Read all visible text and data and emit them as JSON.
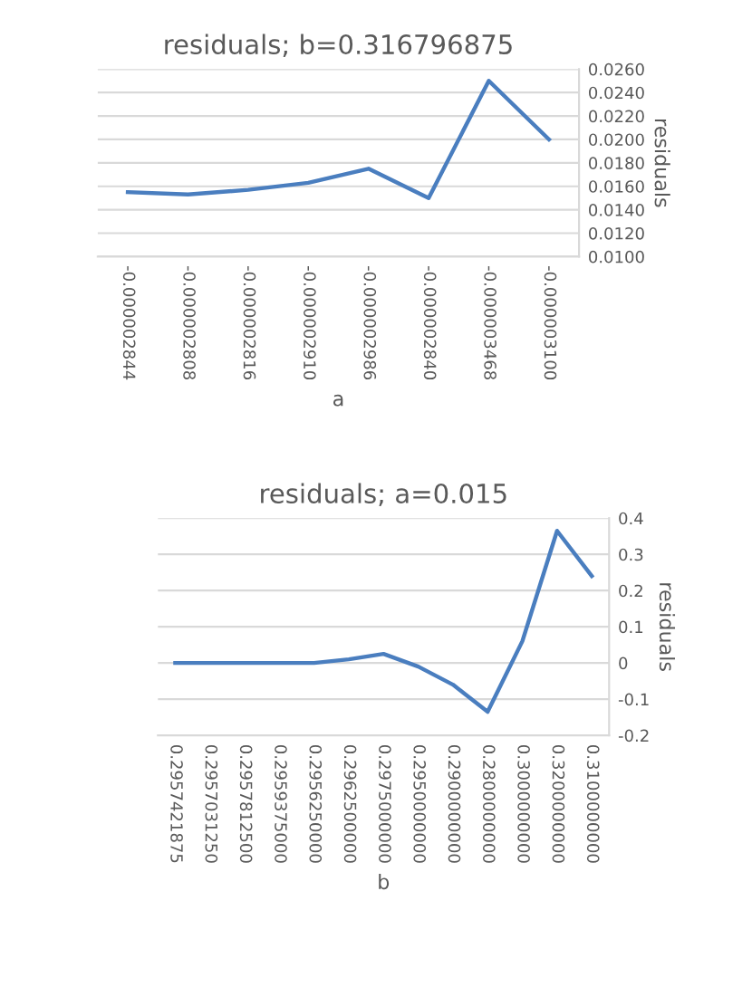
{
  "chart_data": [
    {
      "type": "line",
      "title": "residuals; b=0.316796875",
      "xlabel": "a",
      "ylabel": "residuals",
      "categories": [
        "-0.000002844",
        "-0.000002808",
        "-0.000002816",
        "-0.000002910",
        "-0.000002986",
        "-0.000002840",
        "-0.000003468",
        "-0.000003100"
      ],
      "series": [
        {
          "color": "#4a7ebf",
          "values": [
            0.0155,
            0.0153,
            0.0157,
            0.0163,
            0.0175,
            0.015,
            0.025,
            0.02
          ]
        }
      ],
      "ylim": [
        0.01,
        0.026
      ],
      "yticks": [
        {
          "value": 0.01,
          "label": "0.0100"
        },
        {
          "value": 0.012,
          "label": "0.0120"
        },
        {
          "value": 0.014,
          "label": "0.0140"
        },
        {
          "value": 0.016,
          "label": "0.0160"
        },
        {
          "value": 0.018,
          "label": "0.0180"
        },
        {
          "value": 0.02,
          "label": "0.0200"
        },
        {
          "value": 0.022,
          "label": "0.0220"
        },
        {
          "value": 0.024,
          "label": "0.0240"
        },
        {
          "value": 0.026,
          "label": "0.0260"
        }
      ],
      "grid": "y",
      "marker": "none",
      "line_style": "solid",
      "legend": false
    },
    {
      "type": "line",
      "title": "residuals; a=0.015",
      "xlabel": "b",
      "ylabel": "residuals",
      "categories": [
        "0.2957421875",
        "0.2957031250",
        "0.2957812500",
        "0.2959375000",
        "0.2956250000",
        "0.2962500000",
        "0.2975000000",
        "0.2950000000",
        "0.2900000000",
        "0.2800000000",
        "0.3000000000",
        "0.3200000000",
        "0.3100000000"
      ],
      "series": [
        {
          "color": "#4a7ebf",
          "values": [
            0.0,
            0.0,
            0.0,
            0.0,
            0.0,
            0.01,
            0.025,
            -0.01,
            -0.06,
            -0.135,
            0.06,
            0.365,
            0.24
          ]
        }
      ],
      "ylim": [
        -0.2,
        0.4
      ],
      "yticks": [
        -0.2,
        -0.1,
        0,
        0.1,
        0.2,
        0.3,
        0.4
      ],
      "grid": "y",
      "marker": "none",
      "line_style": "solid",
      "legend": false
    }
  ]
}
